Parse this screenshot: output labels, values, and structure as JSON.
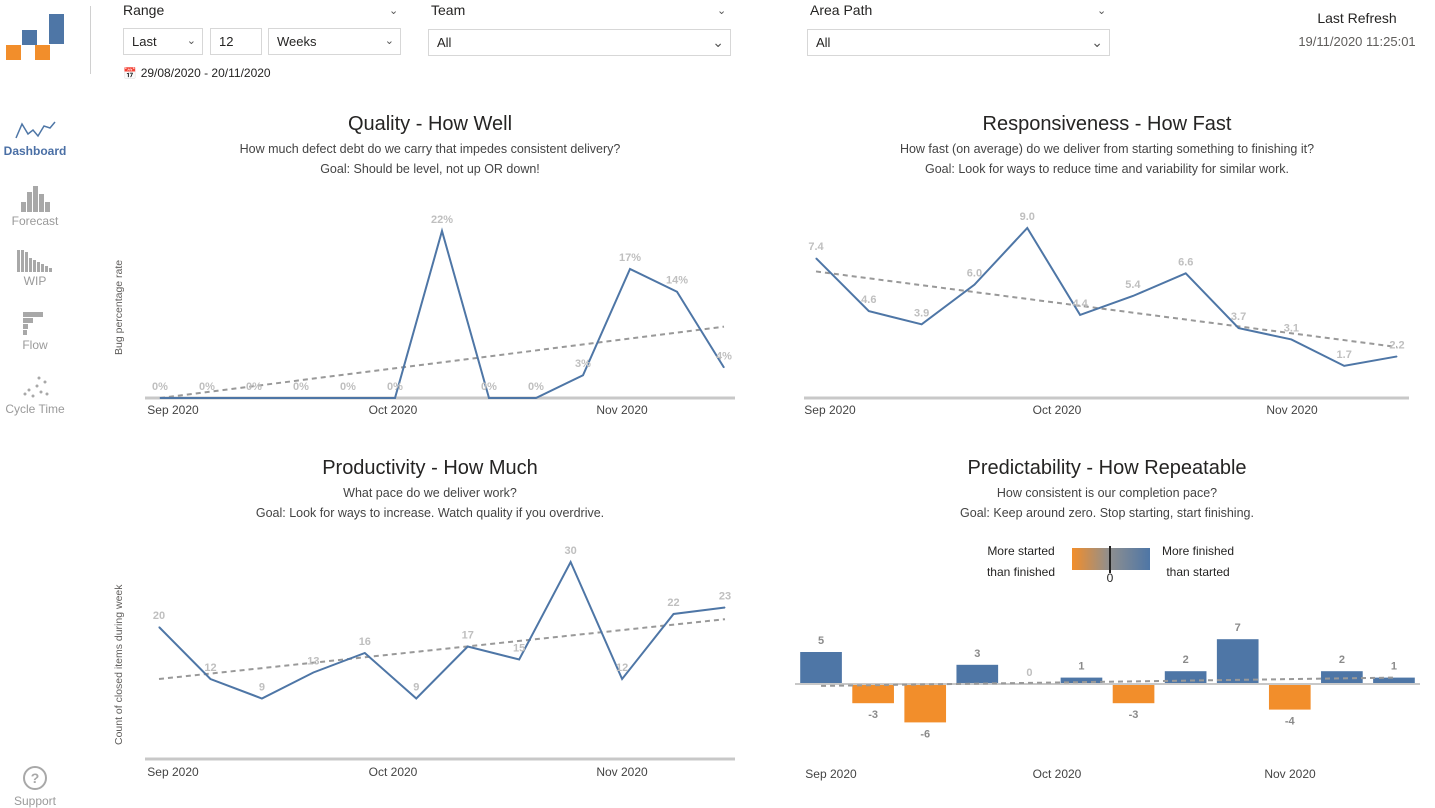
{
  "nav": {
    "items": [
      {
        "label": "Dashboard",
        "icon": "line-chart-icon"
      },
      {
        "label": "Forecast",
        "icon": "histogram-icon"
      },
      {
        "label": "WIP",
        "icon": "descending-bars-icon"
      },
      {
        "label": "Flow",
        "icon": "flow-bars-icon"
      },
      {
        "label": "Cycle Time",
        "icon": "scatter-icon"
      }
    ],
    "support_label": "Support",
    "support_icon": "question-icon"
  },
  "filters": {
    "range": {
      "label": "Range",
      "mode": "Last",
      "count": "12",
      "unit": "Weeks"
    },
    "team": {
      "label": "Team",
      "value": "All"
    },
    "area_path": {
      "label": "Area Path",
      "value": "All"
    },
    "date_range": "29/08/2020 - 20/11/2020"
  },
  "refresh": {
    "label": "Last Refresh",
    "value": "19/11/2020 11:25:01"
  },
  "colors": {
    "blue": "#4e76a6",
    "orange": "#f28e2b",
    "trend": "#999999",
    "label": "#bfbfbf"
  },
  "quality": {
    "title": "Quality - How Well",
    "subtitle": "How much defect debt do we carry that impedes consistent delivery?",
    "goal": "Goal: Should be level, not up OR down!",
    "ylabel": "Bug percentage rate"
  },
  "responsiveness": {
    "title": "Responsiveness - How Fast",
    "subtitle": "How fast (on average) do we deliver from starting something to finishing it?",
    "goal": "Goal: Look for ways to reduce time and variability for similar work."
  },
  "productivity": {
    "title": "Productivity - How Much",
    "subtitle": "What pace do we deliver work?",
    "goal": "Goal: Look for ways to increase. Watch quality if you overdrive.",
    "ylabel": "Count of closed items during week"
  },
  "predictability": {
    "title": "Predictability - How Repeatable",
    "subtitle": "How consistent is our completion pace?",
    "goal": "Goal: Keep around zero. Stop starting, start finishing.",
    "legend_left_1": "More started",
    "legend_left_2": "than finished",
    "legend_right_1": "More finished",
    "legend_right_2": "than started",
    "legend_zero": "0"
  },
  "chart_data": [
    {
      "name": "quality",
      "type": "line",
      "x_ticks": [
        "Sep 2020",
        "Oct 2020",
        "Nov 2020"
      ],
      "values": [
        0,
        0,
        0,
        0,
        0,
        0,
        22,
        0,
        0,
        3,
        17,
        14,
        4
      ],
      "labels": [
        "0%",
        "0%",
        "0%",
        "0%",
        "0%",
        "0%",
        "22%",
        "0%",
        "0%",
        "3%",
        "17%",
        "14%",
        "4%"
      ],
      "trend": [
        0,
        9.4
      ],
      "ylim": [
        0,
        22
      ]
    },
    {
      "name": "responsiveness",
      "type": "line",
      "x_ticks": [
        "Sep 2020",
        "Oct 2020",
        "Nov 2020"
      ],
      "values": [
        7.4,
        4.6,
        3.9,
        6.0,
        9.0,
        4.4,
        5.4,
        6.6,
        3.7,
        3.1,
        1.7,
        2.2
      ],
      "labels": [
        "7.4",
        "4.6",
        "3.9",
        "6.0",
        "9.0",
        "4.4",
        "5.4",
        "6.6",
        "3.7",
        "3.1",
        "1.7",
        "2.2"
      ],
      "trend": [
        6.7,
        2.7
      ],
      "ylim": [
        0,
        9
      ]
    },
    {
      "name": "productivity",
      "type": "line",
      "x_ticks": [
        "Sep 2020",
        "Oct 2020",
        "Nov 2020"
      ],
      "values": [
        20,
        12,
        9,
        13,
        16,
        9,
        17,
        15,
        30,
        12,
        22,
        23
      ],
      "labels": [
        "20",
        "12",
        "9",
        "13",
        "16",
        "9",
        "17",
        "15",
        "30",
        "12",
        "22",
        "23"
      ],
      "trend": [
        12.0,
        21.2
      ],
      "ylim": [
        0,
        30
      ]
    },
    {
      "name": "predictability",
      "type": "bar",
      "x_ticks": [
        "Sep 2020",
        "Oct 2020",
        "Nov 2020"
      ],
      "values": [
        5,
        -3,
        -6,
        3,
        0,
        1,
        -3,
        2,
        7,
        -4,
        2,
        1
      ],
      "labels": [
        "5",
        "-3",
        "-6",
        "3",
        "0",
        "1",
        "-3",
        "2",
        "7",
        "-4",
        "2",
        "1"
      ],
      "trend": [
        -0.3,
        1.0
      ]
    }
  ]
}
